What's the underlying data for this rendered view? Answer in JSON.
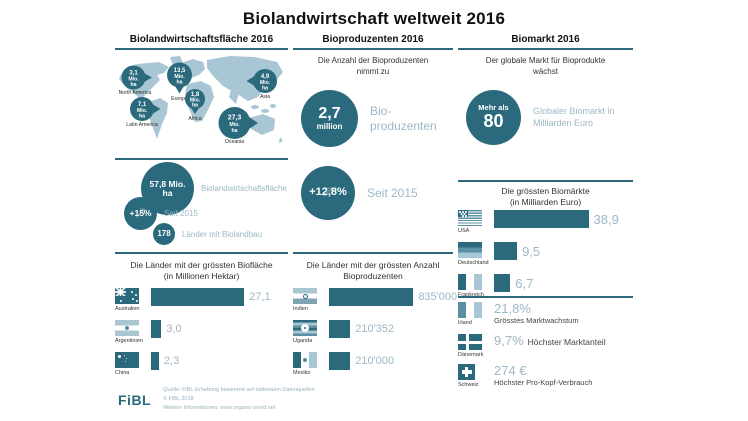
{
  "title": "Biolandwirtschaft weltweit 2016",
  "colors": {
    "dark_teal": "#2b6a7c",
    "medium_teal": "#5b8fa3",
    "light_blue": "#a9c6d4",
    "muted_label": "#9cb8c5"
  },
  "area": {
    "header": "Biolandwirtschaftsfläche 2016",
    "map_unit_line1": "Mio.",
    "map_unit_line2": "ha",
    "stats": [
      {
        "value_line1": "57,8 Mio.",
        "value_line2": "ha",
        "label": "Biolandwirtschaftsfläche"
      },
      {
        "value": "+15%",
        "label": "Seit 2015"
      },
      {
        "value": "178",
        "label": "Länder mit Biolandbau"
      }
    ]
  },
  "producers": {
    "header": "Bioproduzenten 2016",
    "intro_line1": "Die Anzahl der Bioproduzenten",
    "intro_line2": "nimmt zu",
    "big_circle": {
      "value": "2,7",
      "unit": "million",
      "label_line1": "Bio-",
      "label_line2": "produzenten"
    },
    "growth_circle": {
      "value": "+12,8%",
      "label": "Seit 2015"
    }
  },
  "market": {
    "header": "Biomarkt 2016",
    "intro_line1": "Der globale Markt für Bioprodukte",
    "intro_line2": "wächst",
    "big_circle": {
      "line1": "Mehr als",
      "line2": "80",
      "label_line1": "Globaler Biomarkt in",
      "label_line2": "Milliarden Euro"
    },
    "facts": [
      {
        "country": "Irland",
        "value": "21,8%",
        "label": "Grösstes Marktwachstum"
      },
      {
        "country": "Dänemark",
        "value": "9,7%",
        "label": "Höchster Marktanteil"
      },
      {
        "country": "Schweiz",
        "value": "274 €",
        "label": "Höchster Pro-Kopf-Verbrauch"
      }
    ]
  },
  "chart_data": [
    {
      "type": "map-bubbles",
      "title": "Biolandwirtschaftsfläche nach Region",
      "unit": "Mio. ha",
      "categories": [
        "North America",
        "Europe",
        "Asia",
        "Africa",
        "Latin America",
        "Oceania"
      ],
      "values": [
        3.1,
        13.5,
        4.9,
        1.8,
        7.1,
        27.3
      ],
      "value_labels": [
        "3,1",
        "13,5",
        "4,9",
        "1,8",
        "7,1",
        "27,3"
      ]
    },
    {
      "type": "bar",
      "title_line1": "Die Länder mit der grössten Biofläche",
      "title_line2": "(in Millionen Hektar)",
      "unit": "Millionen Hektar",
      "categories": [
        "Australien",
        "Argentinien",
        "China"
      ],
      "values": [
        27.1,
        3.0,
        2.3
      ],
      "value_labels": [
        "27,1",
        "3,0",
        "2,3"
      ],
      "max": 27.1
    },
    {
      "type": "bar",
      "title_line1": "Die Länder mit der grössten Anzahl",
      "title_line2": "Bioproduzenten",
      "unit": "Bioproduzenten",
      "categories": [
        "Indien",
        "Uganda",
        "Mexiko"
      ],
      "values": [
        835000,
        210352,
        210000
      ],
      "value_labels": [
        "835'000",
        "210'352",
        "210'000"
      ],
      "max": 835000
    },
    {
      "type": "bar",
      "title_line1": "Die grössten Biomärkte",
      "title_line2": "(in Milliarden Euro)",
      "unit": "Milliarden Euro",
      "categories": [
        "USA",
        "Deutschland",
        "Frankreich"
      ],
      "values": [
        38.9,
        9.5,
        6.7
      ],
      "value_labels": [
        "38,9",
        "9,5",
        "6,7"
      ],
      "max": 38.9
    }
  ],
  "footer": {
    "logo": "FiBL",
    "line1": "Quelle: FiBL-Erhebung basierend auf nationalen Datenquellen",
    "line2": "© FiBL 2018",
    "line3": "Weitere Informationen: www.organic-world.net"
  }
}
